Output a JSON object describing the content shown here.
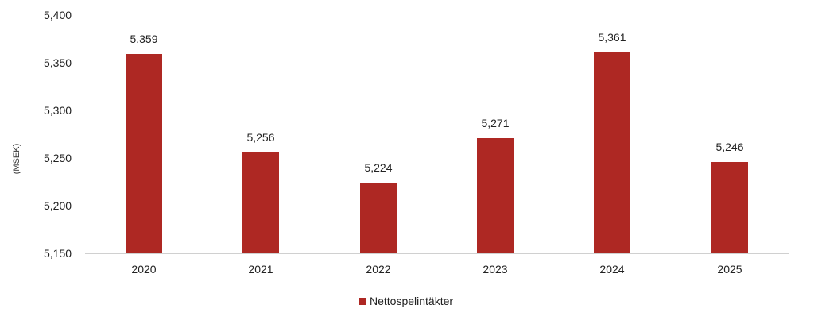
{
  "chart_data": {
    "type": "bar",
    "title": "",
    "xlabel": "",
    "ylabel": "(MSEK)",
    "ylim": [
      5150,
      5400
    ],
    "yticks": [
      "5,150",
      "5,200",
      "5,250",
      "5,300",
      "5,350",
      "5,400"
    ],
    "grid": false,
    "legend_position": "bottom",
    "categories": [
      "2020",
      "2021",
      "2022",
      "2023",
      "2024",
      "2025"
    ],
    "series": [
      {
        "name": "Nettospelintäkter",
        "color": "#ae2823",
        "values": [
          5359,
          5256,
          5224,
          5271,
          5361,
          5246
        ],
        "labels": [
          "5,359",
          "5,256",
          "5,224",
          "5,271",
          "5,361",
          "5,246"
        ]
      }
    ]
  }
}
